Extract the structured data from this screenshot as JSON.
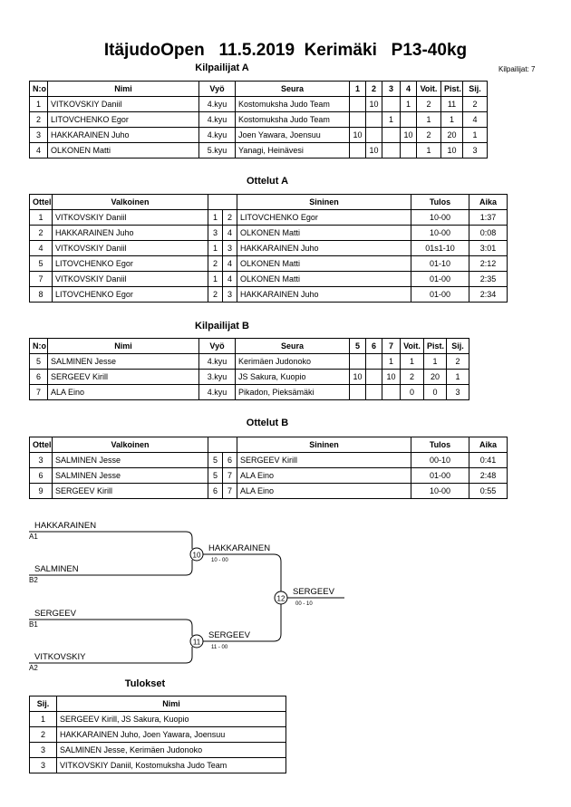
{
  "header": {
    "title": "ItäjudoOpen   11.5.2019  Kerimäki   P13-40kg",
    "participants": "Kilpailijat: 7"
  },
  "competitors_a": {
    "title": "Kilpailijat A",
    "columns": [
      "N:o",
      "Nimi",
      "Vyö",
      "Seura",
      "1",
      "2",
      "3",
      "4",
      "Voit.",
      "Pist.",
      "Sij."
    ],
    "rows": [
      [
        1,
        "VITKOVSKIY  Daniil",
        "4.kyu",
        "Kostomuksha Judo Team",
        null,
        10,
        null,
        1,
        2,
        11,
        2
      ],
      [
        2,
        "LITOVCHENKO Egor",
        "4.kyu",
        "Kostomuksha Judo Team",
        null,
        null,
        1,
        null,
        1,
        1,
        4
      ],
      [
        3,
        "HAKKARAINEN Juho",
        "4.kyu",
        "Joen Yawara, Joensuu",
        10,
        null,
        null,
        10,
        2,
        20,
        1
      ],
      [
        4,
        "OLKONEN Matti",
        "5.kyu",
        "Yanagi, Heinävesi",
        null,
        10,
        null,
        null,
        1,
        10,
        3
      ]
    ]
  },
  "matches_a": {
    "title": "Ottelut A",
    "columns": [
      "Ottelu",
      "Valkoinen",
      "Sininen",
      "Tulos",
      "Aika"
    ],
    "rows": [
      [
        1,
        "VITKOVSKIY  Daniil",
        1,
        2,
        "LITOVCHENKO Egor",
        "10-00",
        "1:37"
      ],
      [
        2,
        "HAKKARAINEN Juho",
        3,
        4,
        "OLKONEN Matti",
        "10-00",
        "0:08"
      ],
      [
        4,
        "VITKOVSKIY  Daniil",
        1,
        3,
        "HAKKARAINEN Juho",
        "01s1-10",
        "3:01"
      ],
      [
        5,
        "LITOVCHENKO Egor",
        2,
        4,
        "OLKONEN Matti",
        "01-10",
        "2:12"
      ],
      [
        7,
        "VITKOVSKIY  Daniil",
        1,
        4,
        "OLKONEN Matti",
        "01-00",
        "2:35"
      ],
      [
        8,
        "LITOVCHENKO Egor",
        2,
        3,
        "HAKKARAINEN Juho",
        "01-00",
        "2:34"
      ]
    ]
  },
  "competitors_b": {
    "title": "Kilpailijat B",
    "columns": [
      "N:o",
      "Nimi",
      "Vyö",
      "Seura",
      "5",
      "6",
      "7",
      "Voit.",
      "Pist.",
      "Sij."
    ],
    "rows": [
      [
        5,
        "SALMINEN Jesse",
        "4.kyu",
        "Kerimäen Judonoko",
        null,
        null,
        1,
        1,
        1,
        2
      ],
      [
        6,
        "SERGEEV Kirill",
        "3.kyu",
        "JS Sakura, Kuopio",
        10,
        null,
        10,
        2,
        20,
        1
      ],
      [
        7,
        "ALA Eino",
        "4.kyu",
        "Pikadon, Pieksämäki",
        null,
        null,
        null,
        0,
        0,
        3
      ]
    ]
  },
  "matches_b": {
    "title": "Ottelut B",
    "columns": [
      "Ottelu",
      "Valkoinen",
      "Sininen",
      "Tulos",
      "Aika"
    ],
    "rows": [
      [
        3,
        "SALMINEN Jesse",
        5,
        6,
        "SERGEEV Kirill",
        "00-10",
        "0:41"
      ],
      [
        6,
        "SALMINEN Jesse",
        5,
        7,
        "ALA Eino",
        "01-00",
        "2:48"
      ],
      [
        9,
        "SERGEEV Kirill",
        6,
        7,
        "ALA Eino",
        "10-00",
        "0:55"
      ]
    ]
  },
  "bracket": {
    "entries": [
      {
        "name": "HAKKARAINEN",
        "seed": "A1"
      },
      {
        "name": "SALMINEN",
        "seed": "B2"
      },
      {
        "name": "SERGEEV",
        "seed": "B1"
      },
      {
        "name": "VITKOVSKIY",
        "seed": "A2"
      }
    ],
    "matches": [
      {
        "number": 10,
        "winner": "HAKKARAINEN",
        "score": "10 - 00"
      },
      {
        "number": 11,
        "winner": "SERGEEV",
        "score": "11 - 00"
      },
      {
        "number": 12,
        "winner": "SERGEEV",
        "score": "00 - 10"
      }
    ]
  },
  "results": {
    "title": "Tulokset",
    "columns": [
      "Sij.",
      "Nimi"
    ],
    "rows": [
      [
        1,
        "SERGEEV Kirill, JS Sakura, Kuopio"
      ],
      [
        2,
        "HAKKARAINEN Juho, Joen Yawara, Joensuu"
      ],
      [
        3,
        "SALMINEN Jesse, Kerimäen Judonoko"
      ],
      [
        3,
        "VITKOVSKIY Daniil, Kostomuksha Judo Team"
      ]
    ]
  }
}
